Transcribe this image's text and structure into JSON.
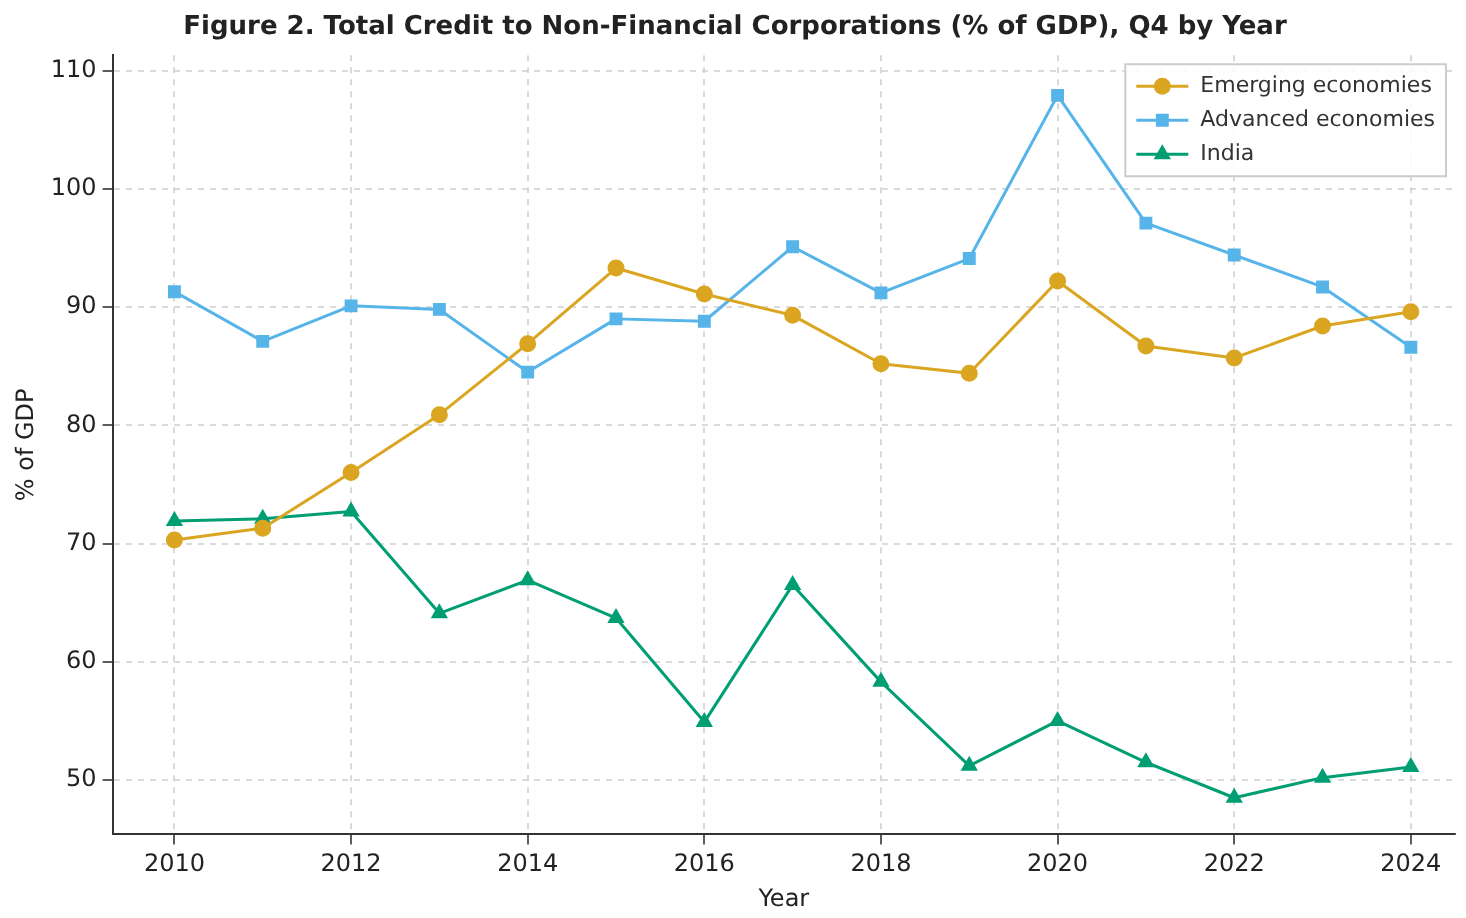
{
  "chart_data": {
    "type": "line",
    "title": "Figure 2. Total Credit to Non-Financial Corporations (% of GDP), Q4 by Year",
    "xlabel": "Year",
    "ylabel": "% of GDP",
    "x": [
      2010,
      2011,
      2012,
      2013,
      2014,
      2015,
      2016,
      2017,
      2018,
      2019,
      2020,
      2021,
      2022,
      2023,
      2024
    ],
    "series": [
      {
        "name": "Emerging economies",
        "color": "#daa520",
        "marker": "circle",
        "values": [
          70.3,
          71.3,
          76.0,
          80.9,
          86.9,
          93.3,
          91.1,
          89.3,
          85.2,
          84.4,
          92.2,
          86.7,
          85.7,
          88.4,
          89.6
        ]
      },
      {
        "name": "Advanced economies",
        "color": "#56b4e9",
        "marker": "square",
        "values": [
          91.3,
          87.1,
          90.1,
          89.8,
          84.5,
          89.0,
          88.8,
          95.1,
          91.2,
          94.1,
          107.9,
          97.1,
          94.4,
          91.7,
          86.6
        ]
      },
      {
        "name": "India",
        "color": "#009e73",
        "marker": "triangle",
        "values": [
          71.9,
          72.1,
          72.7,
          64.1,
          66.9,
          63.7,
          54.9,
          66.5,
          58.3,
          51.2,
          55.0,
          51.5,
          48.5,
          50.2,
          51.1
        ]
      }
    ],
    "xlim": [
      2009.3,
      2024.5
    ],
    "xticks": [
      2010,
      2012,
      2014,
      2016,
      2018,
      2020,
      2022,
      2024
    ],
    "ylim": [
      45.4,
      111.3
    ],
    "yticks": [
      50,
      60,
      70,
      80,
      90,
      100,
      110
    ],
    "grid": true,
    "legend": "top right",
    "line_style": "solid"
  }
}
